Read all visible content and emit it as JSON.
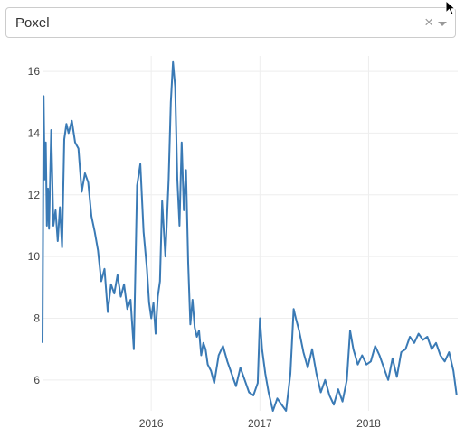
{
  "dropdown": {
    "selected": "Poxel",
    "clear_symbol": "×"
  },
  "colors": {
    "line": "#3a7ab5",
    "grid": "#eeeeee"
  },
  "chart_data": {
    "type": "line",
    "title": "",
    "xlabel": "",
    "ylabel": "",
    "xlim": [
      2015.0,
      2018.82
    ],
    "ylim": [
      5.0,
      16.5
    ],
    "x_ticks": [
      {
        "value": 2016,
        "label": "2016"
      },
      {
        "value": 2017,
        "label": "2017"
      },
      {
        "value": 2018,
        "label": "2018"
      }
    ],
    "y_ticks": [
      {
        "value": 6,
        "label": "6"
      },
      {
        "value": 8,
        "label": "8"
      },
      {
        "value": 10,
        "label": "10"
      },
      {
        "value": 12,
        "label": "12"
      },
      {
        "value": 14,
        "label": "14"
      },
      {
        "value": 16,
        "label": "16"
      }
    ],
    "series": [
      {
        "name": "Poxel",
        "x": [
          2015.0,
          2015.01,
          2015.02,
          2015.03,
          2015.04,
          2015.05,
          2015.06,
          2015.08,
          2015.1,
          2015.12,
          2015.14,
          2015.16,
          2015.18,
          2015.2,
          2015.22,
          2015.24,
          2015.27,
          2015.3,
          2015.33,
          2015.36,
          2015.39,
          2015.42,
          2015.45,
          2015.48,
          2015.51,
          2015.54,
          2015.57,
          2015.6,
          2015.63,
          2015.66,
          2015.69,
          2015.72,
          2015.75,
          2015.78,
          2015.81,
          2015.84,
          2015.87,
          2015.9,
          2015.93,
          2015.96,
          2015.98,
          2016.0,
          2016.02,
          2016.04,
          2016.06,
          2016.08,
          2016.1,
          2016.13,
          2016.16,
          2016.18,
          2016.2,
          2016.22,
          2016.24,
          2016.26,
          2016.28,
          2016.3,
          2016.32,
          2016.34,
          2016.36,
          2016.38,
          2016.4,
          2016.42,
          2016.44,
          2016.46,
          2016.48,
          2016.5,
          2016.52,
          2016.55,
          2016.58,
          2016.62,
          2016.66,
          2016.7,
          2016.74,
          2016.78,
          2016.82,
          2016.86,
          2016.9,
          2016.94,
          2016.98,
          2017.0,
          2017.02,
          2017.05,
          2017.08,
          2017.12,
          2017.16,
          2017.2,
          2017.24,
          2017.28,
          2017.31,
          2017.33,
          2017.36,
          2017.4,
          2017.44,
          2017.48,
          2017.52,
          2017.56,
          2017.6,
          2017.64,
          2017.68,
          2017.72,
          2017.76,
          2017.8,
          2017.83,
          2017.86,
          2017.9,
          2017.94,
          2017.98,
          2018.02,
          2018.06,
          2018.1,
          2018.14,
          2018.18,
          2018.22,
          2018.26,
          2018.3,
          2018.34,
          2018.38,
          2018.42,
          2018.46,
          2018.5,
          2018.54,
          2018.58,
          2018.62,
          2018.66,
          2018.7,
          2018.74,
          2018.78,
          2018.81
        ],
        "values": [
          7.2,
          15.2,
          12.5,
          13.7,
          11.0,
          12.2,
          10.9,
          14.1,
          11.0,
          11.5,
          10.5,
          11.6,
          10.3,
          13.8,
          14.3,
          14.0,
          14.4,
          13.7,
          13.5,
          12.1,
          12.7,
          12.4,
          11.3,
          10.8,
          10.2,
          9.2,
          9.6,
          8.2,
          9.1,
          8.8,
          9.4,
          8.7,
          9.1,
          8.3,
          8.6,
          7.0,
          12.3,
          13.0,
          10.8,
          9.6,
          8.5,
          8.0,
          8.5,
          7.5,
          8.7,
          9.2,
          11.8,
          10.0,
          12.5,
          15.0,
          16.3,
          15.5,
          12.5,
          11.0,
          13.7,
          11.5,
          12.8,
          9.8,
          7.8,
          8.6,
          7.7,
          7.4,
          7.6,
          6.8,
          7.2,
          7.0,
          6.5,
          6.3,
          5.9,
          6.8,
          7.1,
          6.6,
          6.2,
          5.8,
          6.4,
          6.0,
          5.6,
          5.5,
          5.9,
          8.0,
          7.0,
          6.2,
          5.6,
          5.0,
          5.4,
          5.2,
          5.0,
          6.2,
          8.3,
          8.0,
          7.6,
          6.9,
          6.4,
          7.0,
          6.2,
          5.6,
          6.0,
          5.5,
          5.2,
          5.7,
          5.3,
          6.0,
          7.6,
          7.0,
          6.5,
          6.8,
          6.5,
          6.6,
          7.1,
          6.8,
          6.4,
          6.0,
          6.7,
          6.1,
          6.9,
          7.0,
          7.4,
          7.2,
          7.5,
          7.3,
          7.4,
          7.0,
          7.2,
          6.8,
          6.6,
          6.9,
          6.3,
          5.5
        ]
      }
    ]
  }
}
